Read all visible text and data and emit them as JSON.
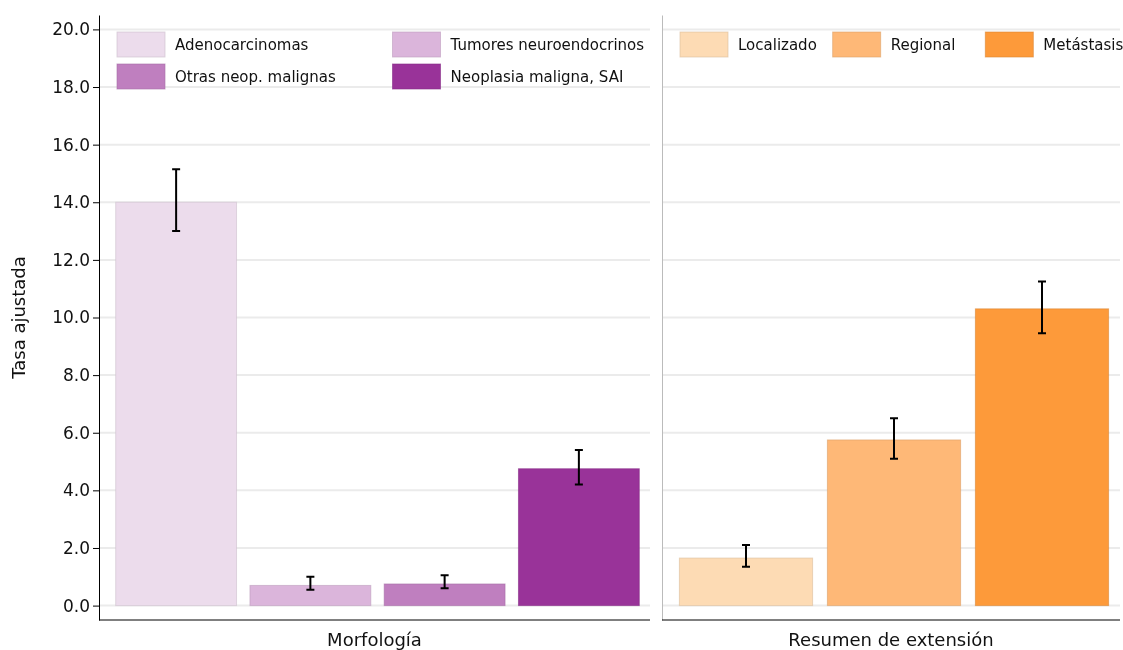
{
  "chart_data": [
    {
      "type": "bar",
      "xlabel": "Morfología",
      "ylabel": "Tasa ajustada",
      "categories": [
        null,
        null,
        null,
        null
      ],
      "stacked": true,
      "legend": "top",
      "grid": "y",
      "tick_labels": "y",
      "ylim": [
        -0.5,
        20.5
      ],
      "yticks": [
        {
          "value": 0,
          "label": "0.0"
        },
        {
          "value": 2,
          "label": "2.0"
        },
        {
          "value": 4,
          "label": "4.0"
        },
        {
          "value": 6,
          "label": "6.0"
        },
        {
          "value": 8,
          "label": "8.0"
        },
        {
          "value": 10,
          "label": "10.0"
        },
        {
          "value": 12,
          "label": "12.0"
        },
        {
          "value": 14,
          "label": "14.0"
        },
        {
          "value": 16,
          "label": "16.0"
        },
        {
          "value": 18,
          "label": "18.0"
        },
        {
          "value": 20,
          "label": "20.0"
        }
      ],
      "series": [
        {
          "name": "Adenocarcinomas",
          "color": "#ecdcec",
          "values": [
            14.0,
            null,
            null,
            null
          ],
          "errors": [
            [
              13.0,
              15.15
            ],
            null,
            null,
            null
          ]
        },
        {
          "name": "Tumores neuroendocrinos",
          "color": "#dbb5db",
          "values": [
            null,
            0.7,
            null,
            null
          ],
          "errors": [
            null,
            [
              0.55,
              1.0
            ],
            null,
            null
          ]
        },
        {
          "name": "Otras neop. malignas",
          "color": "#bf7fbf",
          "values": [
            null,
            null,
            0.75,
            null
          ],
          "errors": [
            null,
            null,
            [
              0.6,
              1.05
            ],
            null
          ]
        },
        {
          "name": "Neoplasia maligna, SAI",
          "color": "#993399",
          "values": [
            null,
            null,
            null,
            4.75
          ],
          "errors": [
            null,
            null,
            null,
            [
              4.2,
              5.4
            ]
          ]
        }
      ]
    },
    {
      "type": "bar",
      "xlabel": "Resumen de extensión",
      "categories": [
        null,
        null,
        null
      ],
      "stacked": true,
      "legend": "top",
      "grid": "y",
      "tick_labels": false,
      "ylim": [
        -0.5,
        20.5
      ],
      "yticks": [
        0,
        2,
        4,
        6,
        8,
        10,
        12,
        14,
        16,
        18,
        20
      ],
      "series": [
        {
          "name": "Localizado",
          "color": "#fddbb4",
          "values": [
            1.65,
            null,
            null
          ],
          "errors": [
            [
              1.35,
              2.1
            ],
            null,
            null
          ]
        },
        {
          "name": "Regional",
          "color": "#feb877",
          "values": [
            null,
            5.75,
            null
          ],
          "errors": [
            null,
            [
              5.1,
              6.5
            ],
            null
          ]
        },
        {
          "name": "Metástasis",
          "color": "#fd9a3a",
          "values": [
            null,
            null,
            10.3
          ],
          "errors": [
            null,
            null,
            [
              9.45,
              11.25
            ]
          ]
        }
      ]
    }
  ]
}
